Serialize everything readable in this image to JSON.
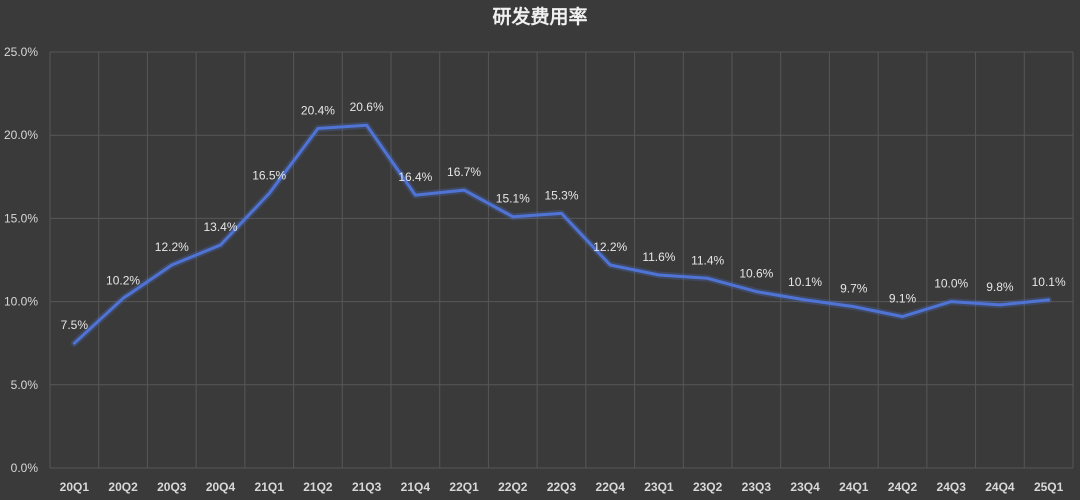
{
  "chart_data": {
    "type": "line",
    "title": "研发费用率",
    "categories": [
      "20Q1",
      "20Q2",
      "20Q3",
      "20Q4",
      "21Q1",
      "21Q2",
      "21Q3",
      "21Q4",
      "22Q1",
      "22Q2",
      "22Q3",
      "22Q4",
      "23Q1",
      "23Q2",
      "23Q3",
      "23Q4",
      "24Q1",
      "24Q2",
      "24Q3",
      "24Q4",
      "25Q1"
    ],
    "series": [
      {
        "values": [
          7.5,
          10.2,
          12.2,
          13.4,
          16.5,
          20.4,
          20.6,
          16.4,
          16.7,
          15.1,
          15.3,
          12.2,
          11.6,
          11.4,
          10.6,
          10.1,
          9.7,
          9.1,
          10.0,
          9.8,
          10.1
        ],
        "labels": [
          "7.5%",
          "10.2%",
          "12.2%",
          "13.4%",
          "16.5%",
          "20.4%",
          "20.6%",
          "16.4%",
          "16.7%",
          "15.1%",
          "15.3%",
          "12.2%",
          "11.6%",
          "11.4%",
          "10.6%",
          "10.1%",
          "9.7%",
          "9.1%",
          "10.0%",
          "9.8%",
          "10.1%"
        ],
        "color": "#4f74d6"
      }
    ],
    "ylim": [
      0,
      25
    ],
    "yticks": [
      0,
      5,
      10,
      15,
      20,
      25
    ],
    "ytick_labels": [
      "0.0%",
      "5.0%",
      "10.0%",
      "15.0%",
      "20.0%",
      "25.0%"
    ],
    "grid": true,
    "legend": "none"
  }
}
